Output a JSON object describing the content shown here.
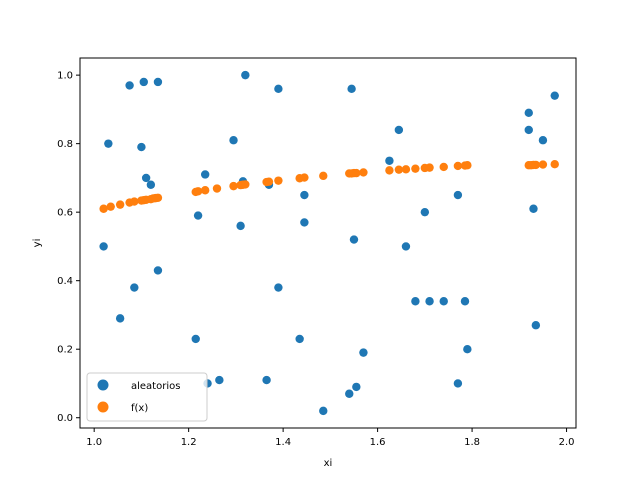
{
  "chart_data": {
    "type": "scatter",
    "xlabel": "xi",
    "ylabel": "yi",
    "xlim": [
      0.97,
      2.02
    ],
    "ylim": [
      -0.03,
      1.05
    ],
    "xticks": [
      1.0,
      1.2,
      1.4,
      1.6,
      1.8,
      2.0
    ],
    "xtick_labels": [
      "1.0",
      "1.2",
      "1.4",
      "1.6",
      "1.8",
      "2.0"
    ],
    "yticks": [
      0.0,
      0.2,
      0.4,
      0.6,
      0.8,
      1.0
    ],
    "ytick_labels": [
      "0.0",
      "0.2",
      "0.4",
      "0.6",
      "0.8",
      "1.0"
    ],
    "grid": false,
    "legend_position": "lower-left",
    "series": [
      {
        "name": "aleatorios",
        "color": "#1f77b4",
        "x": [
          1.02,
          1.03,
          1.055,
          1.075,
          1.085,
          1.1,
          1.105,
          1.11,
          1.12,
          1.135,
          1.135,
          1.215,
          1.22,
          1.235,
          1.24,
          1.265,
          1.295,
          1.31,
          1.315,
          1.32,
          1.365,
          1.37,
          1.39,
          1.39,
          1.435,
          1.445,
          1.445,
          1.485,
          1.54,
          1.545,
          1.55,
          1.555,
          1.57,
          1.625,
          1.645,
          1.66,
          1.68,
          1.7,
          1.71,
          1.74,
          1.77,
          1.77,
          1.785,
          1.79,
          1.92,
          1.92,
          1.93,
          1.935,
          1.95,
          1.975
        ],
        "y": [
          0.5,
          0.8,
          0.29,
          0.97,
          0.38,
          0.79,
          0.98,
          0.7,
          0.68,
          0.98,
          0.43,
          0.23,
          0.59,
          0.71,
          0.1,
          0.11,
          0.81,
          0.56,
          0.69,
          1.0,
          0.11,
          0.68,
          0.96,
          0.38,
          0.23,
          0.65,
          0.57,
          0.02,
          0.07,
          0.96,
          0.52,
          0.09,
          0.19,
          0.75,
          0.84,
          0.5,
          0.34,
          0.6,
          0.34,
          0.34,
          0.65,
          0.1,
          0.34,
          0.2,
          0.89,
          0.84,
          0.61,
          0.27,
          0.81,
          0.94
        ]
      },
      {
        "name": "f(x)",
        "color": "#ff7f0e",
        "x": [
          1.02,
          1.035,
          1.055,
          1.075,
          1.085,
          1.1,
          1.105,
          1.11,
          1.12,
          1.125,
          1.13,
          1.135,
          1.215,
          1.22,
          1.235,
          1.26,
          1.295,
          1.31,
          1.315,
          1.32,
          1.365,
          1.37,
          1.39,
          1.435,
          1.445,
          1.485,
          1.54,
          1.545,
          1.55,
          1.555,
          1.57,
          1.625,
          1.645,
          1.66,
          1.68,
          1.7,
          1.71,
          1.74,
          1.77,
          1.785,
          1.79,
          1.92,
          1.925,
          1.93,
          1.935,
          1.95,
          1.975
        ],
        "y": [
          0.61,
          0.616,
          0.622,
          0.628,
          0.631,
          0.634,
          0.635,
          0.636,
          0.638,
          0.64,
          0.641,
          0.642,
          0.659,
          0.661,
          0.664,
          0.669,
          0.676,
          0.679,
          0.68,
          0.681,
          0.688,
          0.689,
          0.692,
          0.699,
          0.701,
          0.706,
          0.713,
          0.713,
          0.714,
          0.714,
          0.716,
          0.722,
          0.724,
          0.725,
          0.727,
          0.729,
          0.73,
          0.732,
          0.735,
          0.736,
          0.737,
          0.737,
          0.737,
          0.738,
          0.738,
          0.739,
          0.74
        ]
      }
    ]
  }
}
